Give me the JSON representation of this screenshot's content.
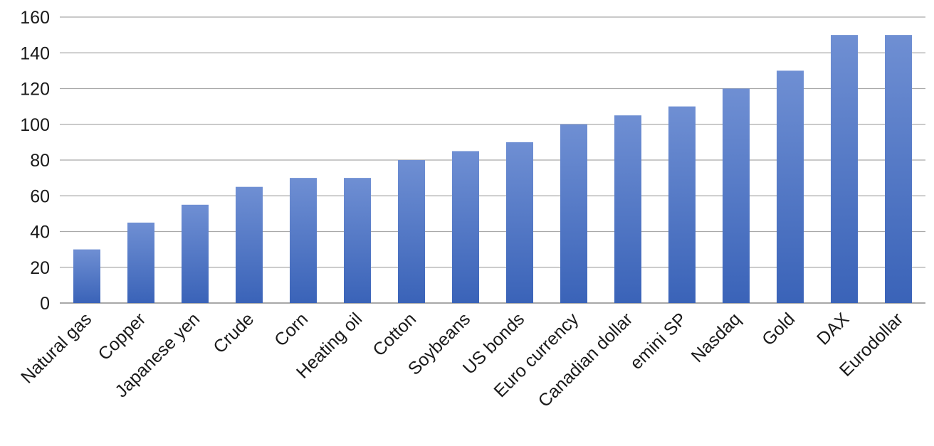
{
  "chart_data": {
    "type": "bar",
    "categories": [
      "Natural gas",
      "Copper",
      "Japanese yen",
      "Crude",
      "Corn",
      "Heating oil",
      "Cotton",
      "Soybeans",
      "US bonds",
      "Euro currency",
      "Canadian dollar",
      "emini SP",
      "Nasdaq",
      "Gold",
      "DAX",
      "Eurodollar"
    ],
    "values": [
      30,
      45,
      55,
      65,
      70,
      70,
      80,
      85,
      90,
      100,
      105,
      110,
      120,
      130,
      150,
      150
    ],
    "yticks": [
      0,
      20,
      40,
      60,
      80,
      100,
      120,
      140,
      160
    ],
    "ylim": [
      0,
      160
    ],
    "title": "",
    "xlabel": "",
    "ylabel": "",
    "grid": true,
    "legend": "none",
    "colors": {
      "bar_top": "#6f8fd3",
      "bar_bottom": "#3a63b8",
      "grid": "#a9a9a9",
      "text": "#1a1a1a"
    }
  }
}
